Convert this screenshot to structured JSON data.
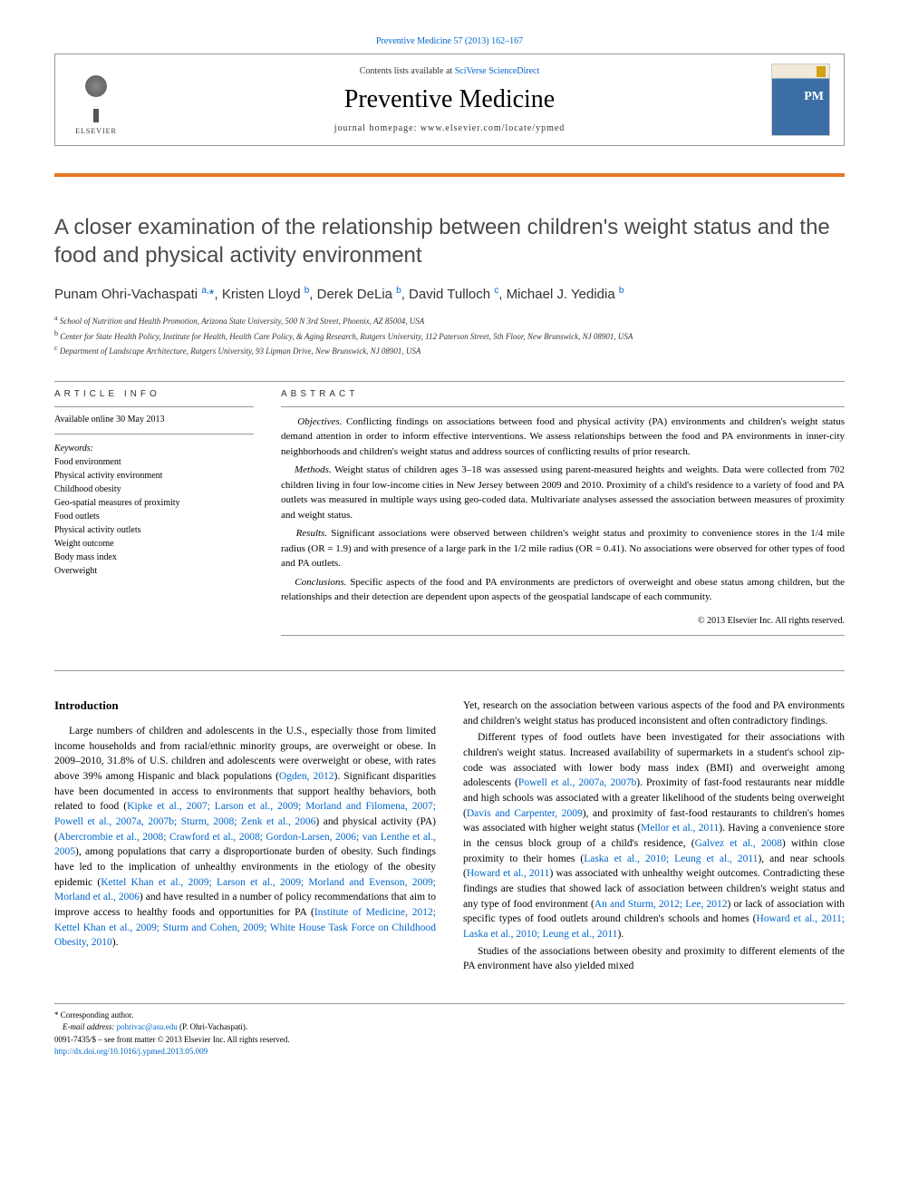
{
  "citation": "Preventive Medicine 57 (2013) 162–167",
  "header": {
    "contents_prefix": "Contents lists available at ",
    "contents_link": "SciVerse ScienceDirect",
    "journal_name": "Preventive Medicine",
    "homepage_label": "journal homepage: www.elsevier.com/locate/ypmed",
    "publisher": "ELSEVIER"
  },
  "article": {
    "title": "A closer examination of the relationship between children's weight status and the food and physical activity environment",
    "authors_html": "Punam Ohri-Vachaspati <sup>a,</sup><span class='star'>*</span>, Kristen Lloyd <sup>b</sup>, Derek DeLia <sup>b</sup>, David Tulloch <sup>c</sup>, Michael J. Yedidia <sup>b</sup>",
    "affiliations": [
      "a School of Nutrition and Health Promotion, Arizona State University, 500 N 3rd Street, Phoenix, AZ 85004, USA",
      "b Center for State Health Policy, Institute for Health, Health Care Policy, & Aging Research, Rutgers University, 112 Paterson Street, 5th Floor, New Brunswick, NJ 08901, USA",
      "c Department of Landscape Architecture, Rutgers University, 93 Lipman Drive, New Brunswick, NJ 08901, USA"
    ]
  },
  "info": {
    "section_label": "ARTICLE INFO",
    "available": "Available online 30 May 2013",
    "keywords_label": "Keywords:",
    "keywords": [
      "Food environment",
      "Physical activity environment",
      "Childhood obesity",
      "Geo-spatial measures of proximity",
      "Food outlets",
      "Physical activity outlets",
      "Weight outcome",
      "Body mass index",
      "Overweight"
    ]
  },
  "abstract": {
    "section_label": "ABSTRACT",
    "objectives_label": "Objectives.",
    "objectives": "Conflicting findings on associations between food and physical activity (PA) environments and children's weight status demand attention in order to inform effective interventions. We assess relationships between the food and PA environments in inner-city neighborhoods and children's weight status and address sources of conflicting results of prior research.",
    "methods_label": "Methods.",
    "methods": "Weight status of children ages 3–18 was assessed using parent-measured heights and weights. Data were collected from 702 children living in four low-income cities in New Jersey between 2009 and 2010. Proximity of a child's residence to a variety of food and PA outlets was measured in multiple ways using geo-coded data. Multivariate analyses assessed the association between measures of proximity and weight status.",
    "results_label": "Results.",
    "results": "Significant associations were observed between children's weight status and proximity to convenience stores in the 1/4 mile radius (OR = 1.9) and with presence of a large park in the 1/2 mile radius (OR = 0.41). No associations were observed for other types of food and PA outlets.",
    "conclusions_label": "Conclusions.",
    "conclusions": "Specific aspects of the food and PA environments are predictors of overweight and obese status among children, but the relationships and their detection are dependent upon aspects of the geospatial landscape of each community.",
    "copyright": "© 2013 Elsevier Inc. All rights reserved."
  },
  "intro": {
    "heading": "Introduction",
    "para1_pre": "Large numbers of children and adolescents in the U.S., especially those from limited income households and from racial/ethnic minority groups, are overweight or obese. In 2009–2010, 31.8% of U.S. children and adolescents were overweight or obese, with rates above 39% among Hispanic and black populations (",
    "ref1": "Ogden, 2012",
    "para1_mid1": "). Significant disparities have been documented in access to environments that support healthy behaviors, both related to food (",
    "ref2": "Kipke et al., 2007; Larson et al., 2009; Morland and Filomena, 2007; Powell et al., 2007a, 2007b; Sturm, 2008; Zenk et al., 2006",
    "para1_mid2": ") and physical activity (PA) (",
    "ref3": "Abercrombie et al., 2008; Crawford et al., 2008; Gordon-Larsen, 2006; van Lenthe et al., 2005",
    "para1_mid3": "), among populations that carry a disproportionate burden of obesity. Such findings have led to the implication of unhealthy environments in the etiology of the obesity epidemic (",
    "ref4": "Kettel Khan et al., 2009; Larson et al., 2009; Morland and Evenson, 2009; Morland et al., 2006",
    "para1_mid4": ") and have resulted in a number of policy recommendations that aim to improve access to healthy foods and opportunities for PA (",
    "ref5": "Institute of Medicine, 2012; Kettel Khan et al., 2009; Sturm and Cohen, 2009; White House Task Force on Childhood Obesity, 2010",
    "para1_end": ").",
    "col2_p1": "Yet, research on the association between various aspects of the food and PA environments and children's weight status has produced inconsistent and often contradictory findings.",
    "col2_p2_pre": "Different types of food outlets have been investigated for their associations with children's weight status. Increased availability of supermarkets in a student's school zip-code was associated with lower body mass index (BMI) and overweight among adolescents (",
    "col2_ref1": "Powell et al., 2007a, 2007b",
    "col2_p2_mid1": "). Proximity of fast-food restaurants near middle and high schools was associated with a greater likelihood of the students being overweight (",
    "col2_ref2": "Davis and Carpenter, 2009",
    "col2_p2_mid2": "), and proximity of fast-food restaurants to children's homes was associated with higher weight status (",
    "col2_ref3": "Mellor et al., 2011",
    "col2_p2_mid3": "). Having a convenience store in the census block group of a child's residence, (",
    "col2_ref4": "Galvez et al., 2008",
    "col2_p2_mid4": ") within close proximity to their homes (",
    "col2_ref5": "Laska et al., 2010; Leung et al., 2011",
    "col2_p2_mid5": "), and near schools (",
    "col2_ref6": "Howard et al., 2011",
    "col2_p2_mid6": ") was associated with unhealthy weight outcomes. Contradicting these findings are studies that showed lack of association between children's weight status and any type of food environment (",
    "col2_ref7": "An and Sturm, 2012; Lee, 2012",
    "col2_p2_mid7": ") or lack of association with specific types of food outlets around children's schools and homes (",
    "col2_ref8": "Howard et al., 2011; Laska et al., 2010; Leung et al., 2011",
    "col2_p2_end": ").",
    "col2_p3": "Studies of the associations between obesity and proximity to different elements of the PA environment have also yielded mixed"
  },
  "footer": {
    "corresponding_label": "* Corresponding author.",
    "email_label": "E-mail address: ",
    "email": "pohrivac@asu.edu",
    "email_suffix": " (P. Ohri-Vachaspati).",
    "issn": "0091-7435/$ – see front matter © 2013 Elsevier Inc. All rights reserved.",
    "doi": "http://dx.doi.org/10.1016/j.ypmed.2013.05.009"
  },
  "colors": {
    "link": "#0066cc",
    "accent": "#e87722",
    "text": "#000000",
    "title_gray": "#4a4a4a"
  }
}
